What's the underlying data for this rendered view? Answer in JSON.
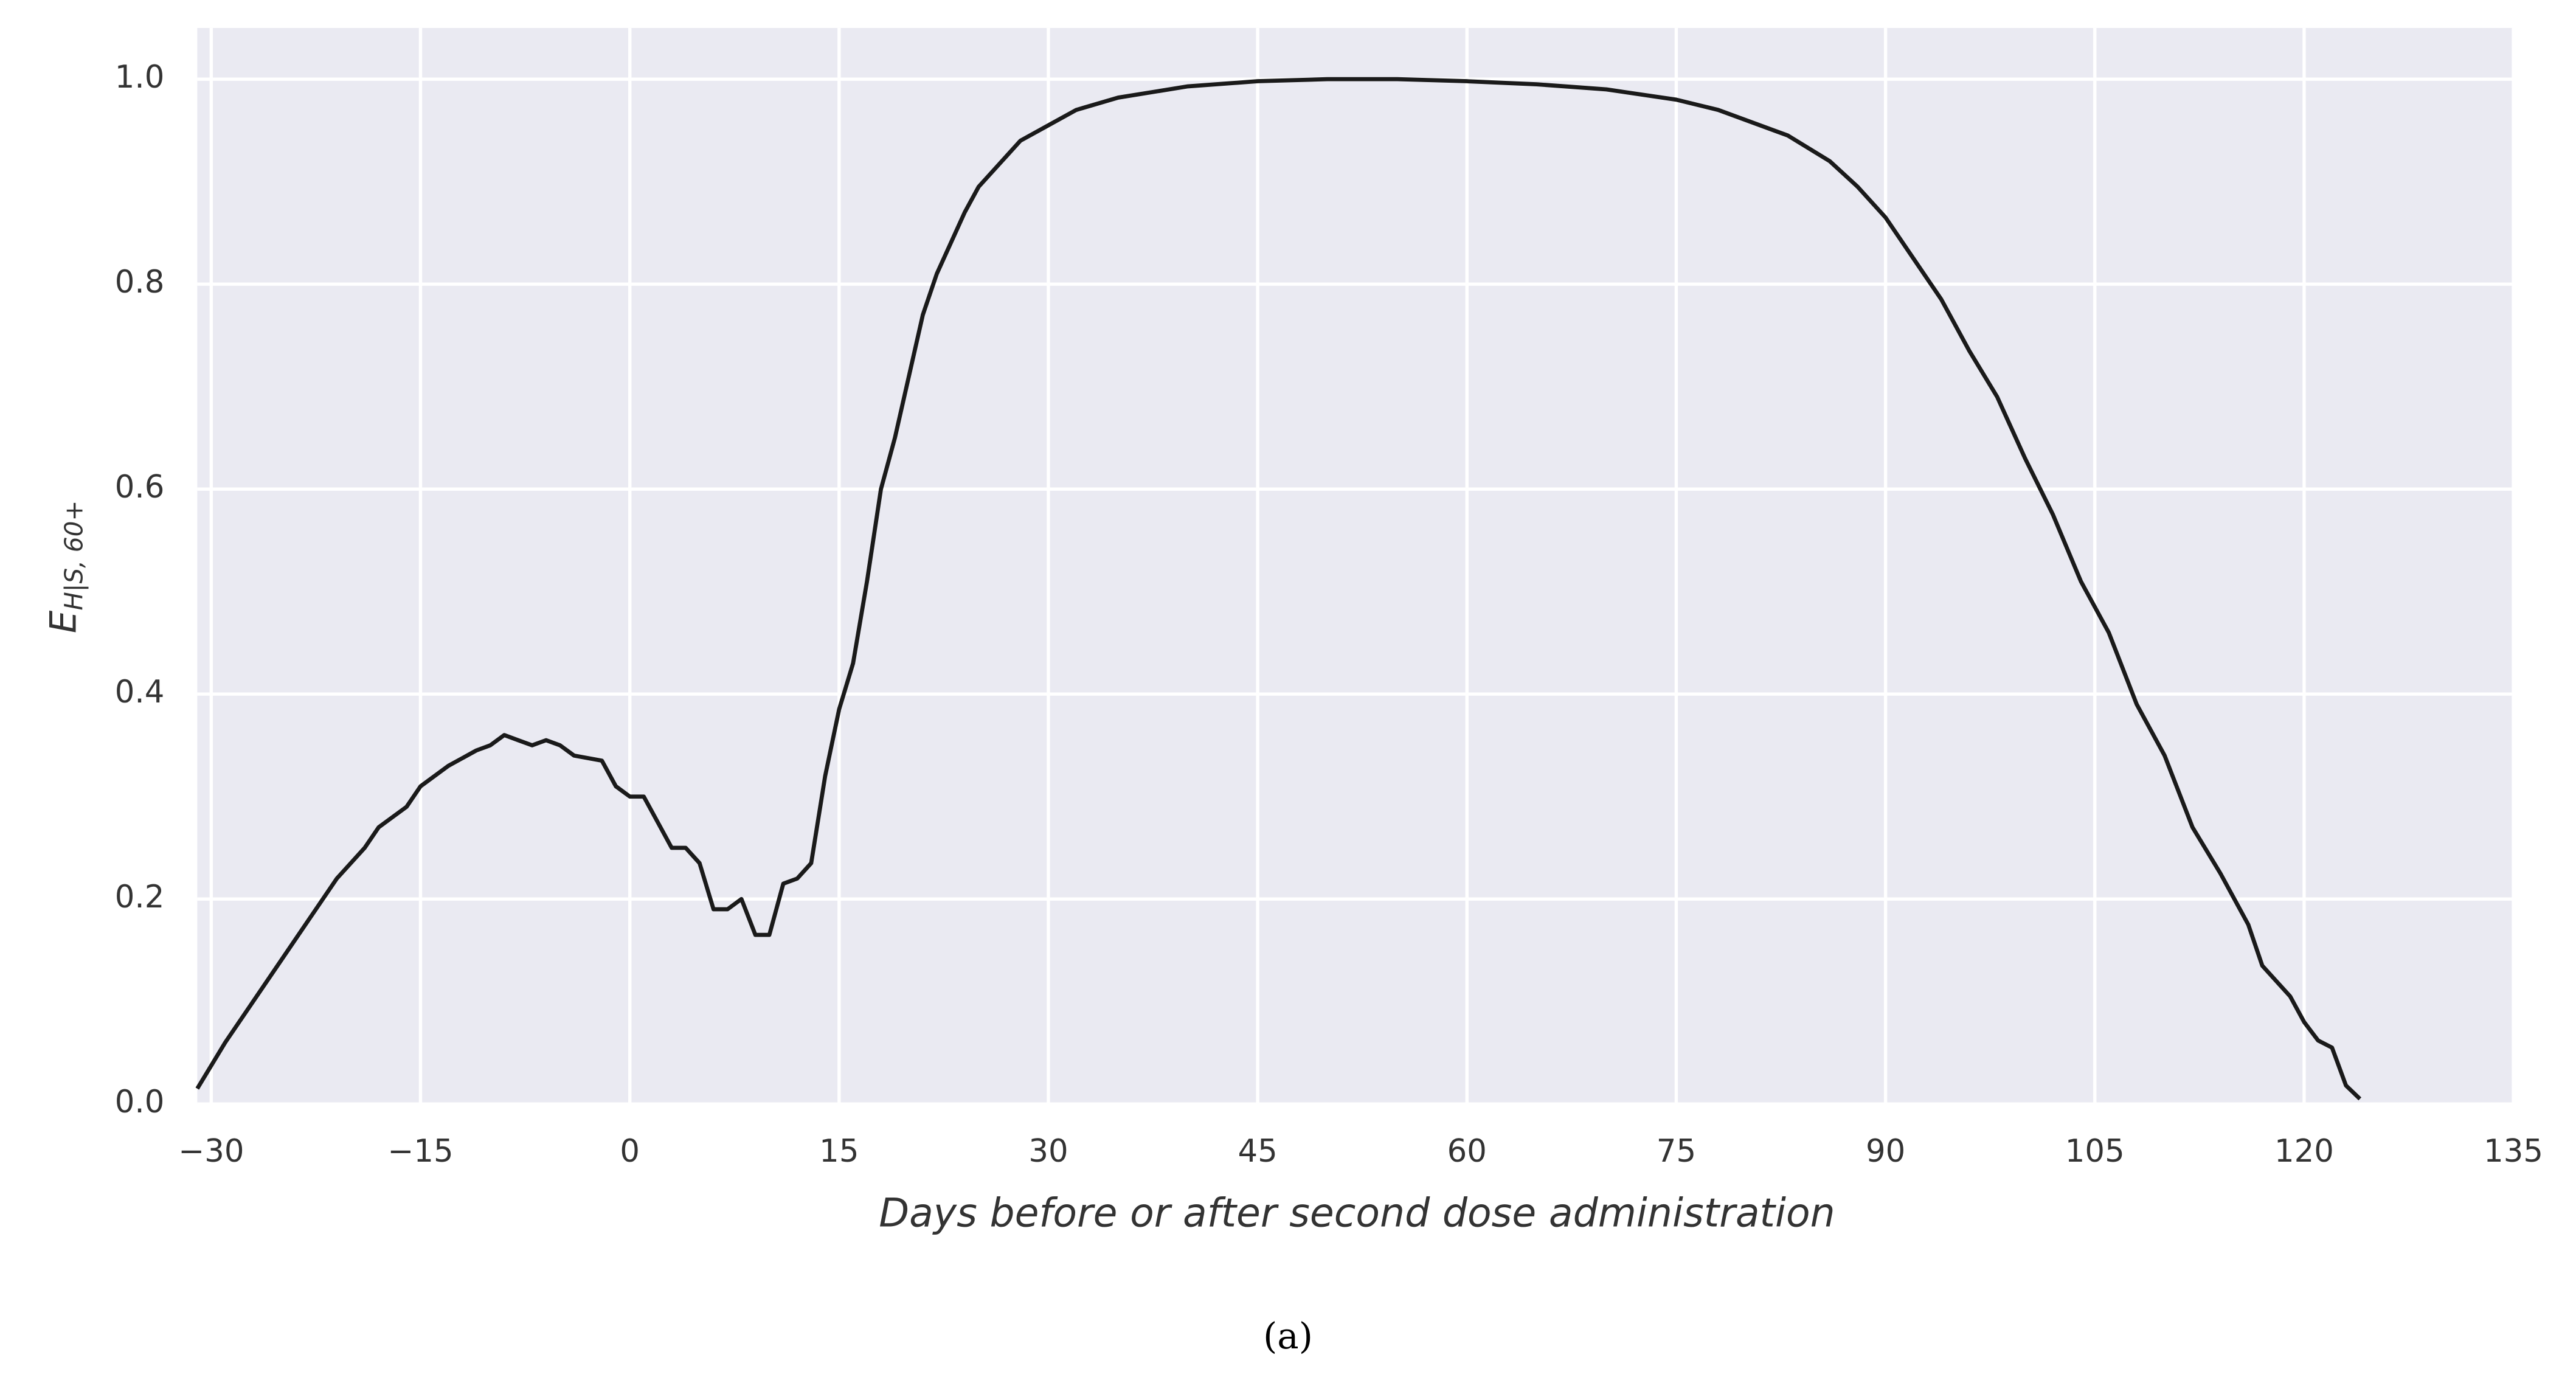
{
  "chart_data": {
    "type": "line",
    "xlabel": "Days before or after second dose administration",
    "ylabel": "E",
    "ylabel_sub": "H|S, 60+",
    "caption": "(a)",
    "xlim": [
      -31,
      135
    ],
    "ylim": [
      0,
      1.05
    ],
    "xticks": [
      {
        "value": -30,
        "label": "−30"
      },
      {
        "value": -15,
        "label": "−15"
      },
      0,
      15,
      30,
      45,
      60,
      75,
      90,
      105,
      120,
      135
    ],
    "yticks": [
      {
        "value": 0,
        "label": "0.0"
      },
      0.2,
      0.4,
      0.6,
      0.8,
      {
        "value": 1,
        "label": "1.0"
      }
    ],
    "grid": true,
    "background": "#eaeaf2",
    "x": [
      -31,
      -29,
      -27,
      -25,
      -23,
      -21,
      -19,
      -18,
      -16,
      -15,
      -14,
      -13,
      -11,
      -10,
      -9,
      -8,
      -7,
      -6,
      -5,
      -4,
      -2,
      -1,
      0,
      1,
      2,
      3,
      4,
      5,
      6,
      7,
      8,
      9,
      10,
      11,
      12,
      13,
      14,
      15,
      16,
      17,
      18,
      19,
      20,
      21,
      22,
      24,
      25,
      27,
      28,
      30,
      32,
      35,
      40,
      45,
      50,
      55,
      60,
      65,
      70,
      75,
      78,
      80,
      83,
      86,
      88,
      90,
      92,
      94,
      96,
      98,
      100,
      102,
      104,
      106,
      108,
      110,
      112,
      114,
      116,
      117,
      118,
      119,
      120,
      121,
      122,
      123,
      124
    ],
    "series": [
      {
        "color": "#1a1a1a",
        "values": [
          0.015,
          0.06,
          0.1,
          0.14,
          0.18,
          0.22,
          0.25,
          0.27,
          0.29,
          0.31,
          0.32,
          0.33,
          0.345,
          0.35,
          0.36,
          0.355,
          0.35,
          0.355,
          0.35,
          0.34,
          0.335,
          0.31,
          0.3,
          0.3,
          0.275,
          0.25,
          0.25,
          0.235,
          0.19,
          0.19,
          0.2,
          0.165,
          0.165,
          0.215,
          0.22,
          0.235,
          0.32,
          0.385,
          0.43,
          0.51,
          0.6,
          0.65,
          0.71,
          0.77,
          0.81,
          0.87,
          0.895,
          0.925,
          0.94,
          0.955,
          0.97,
          0.982,
          0.993,
          0.998,
          1.0,
          1.0,
          0.998,
          0.995,
          0.99,
          0.98,
          0.97,
          0.96,
          0.945,
          0.92,
          0.895,
          0.865,
          0.825,
          0.785,
          0.735,
          0.69,
          0.63,
          0.575,
          0.51,
          0.46,
          0.39,
          0.34,
          0.27,
          0.225,
          0.175,
          0.135,
          0.12,
          0.105,
          0.08,
          0.062,
          0.055,
          0.018,
          0.005
        ]
      }
    ]
  }
}
